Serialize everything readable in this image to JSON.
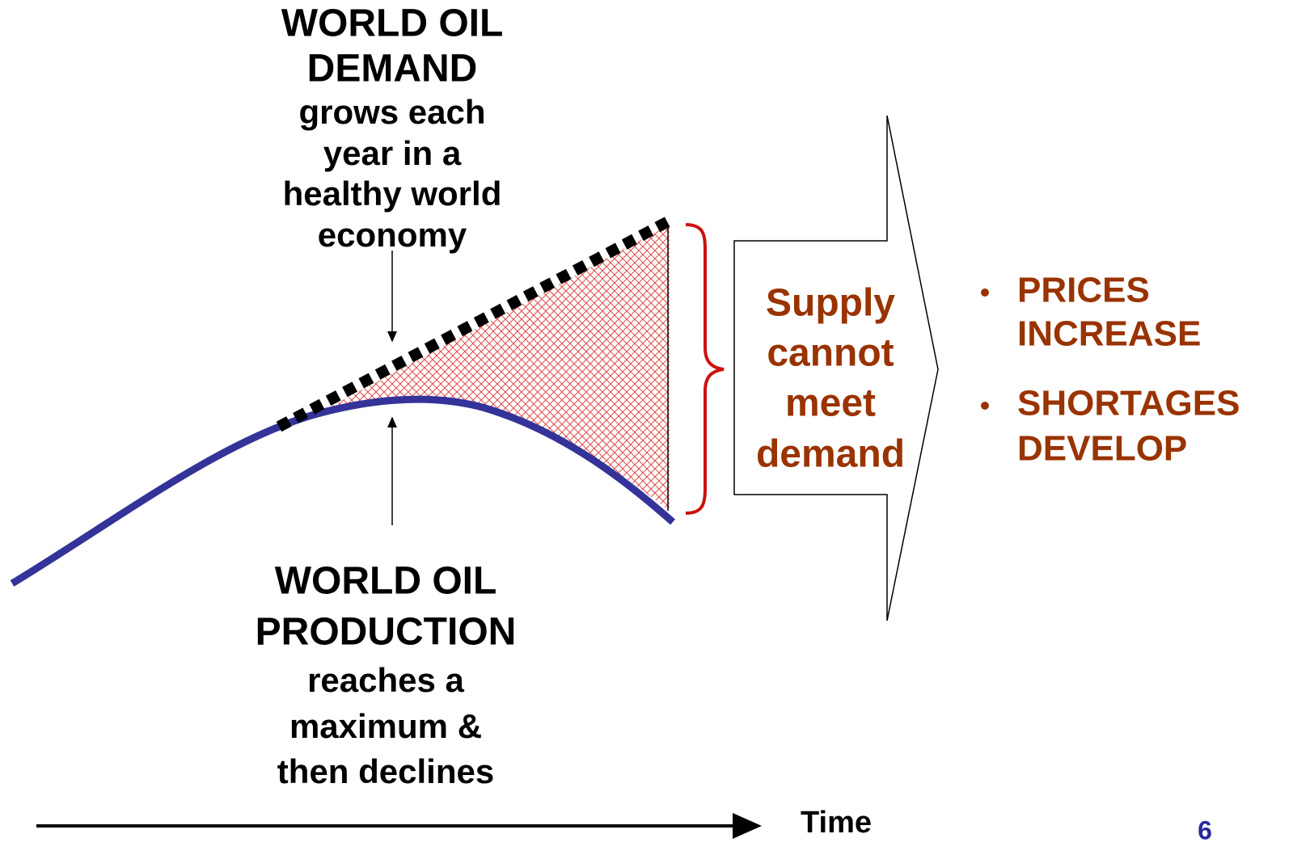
{
  "demand": {
    "title_lines": [
      "WORLD OIL",
      "DEMAND"
    ],
    "description_lines": [
      "grows each",
      "year in a",
      "healthy world",
      "economy"
    ]
  },
  "production": {
    "title_lines": [
      "WORLD OIL",
      "PRODUCTION"
    ],
    "description_lines": [
      "reaches a",
      "maximum &",
      "then declines"
    ]
  },
  "arrow_text": [
    "Supply",
    "cannot",
    "meet",
    "demand"
  ],
  "bullets": [
    [
      "PRICES",
      "INCREASE"
    ],
    [
      "SHORTAGES",
      "DEVELOP"
    ]
  ],
  "axis_label": "Time",
  "page_number": "6"
}
